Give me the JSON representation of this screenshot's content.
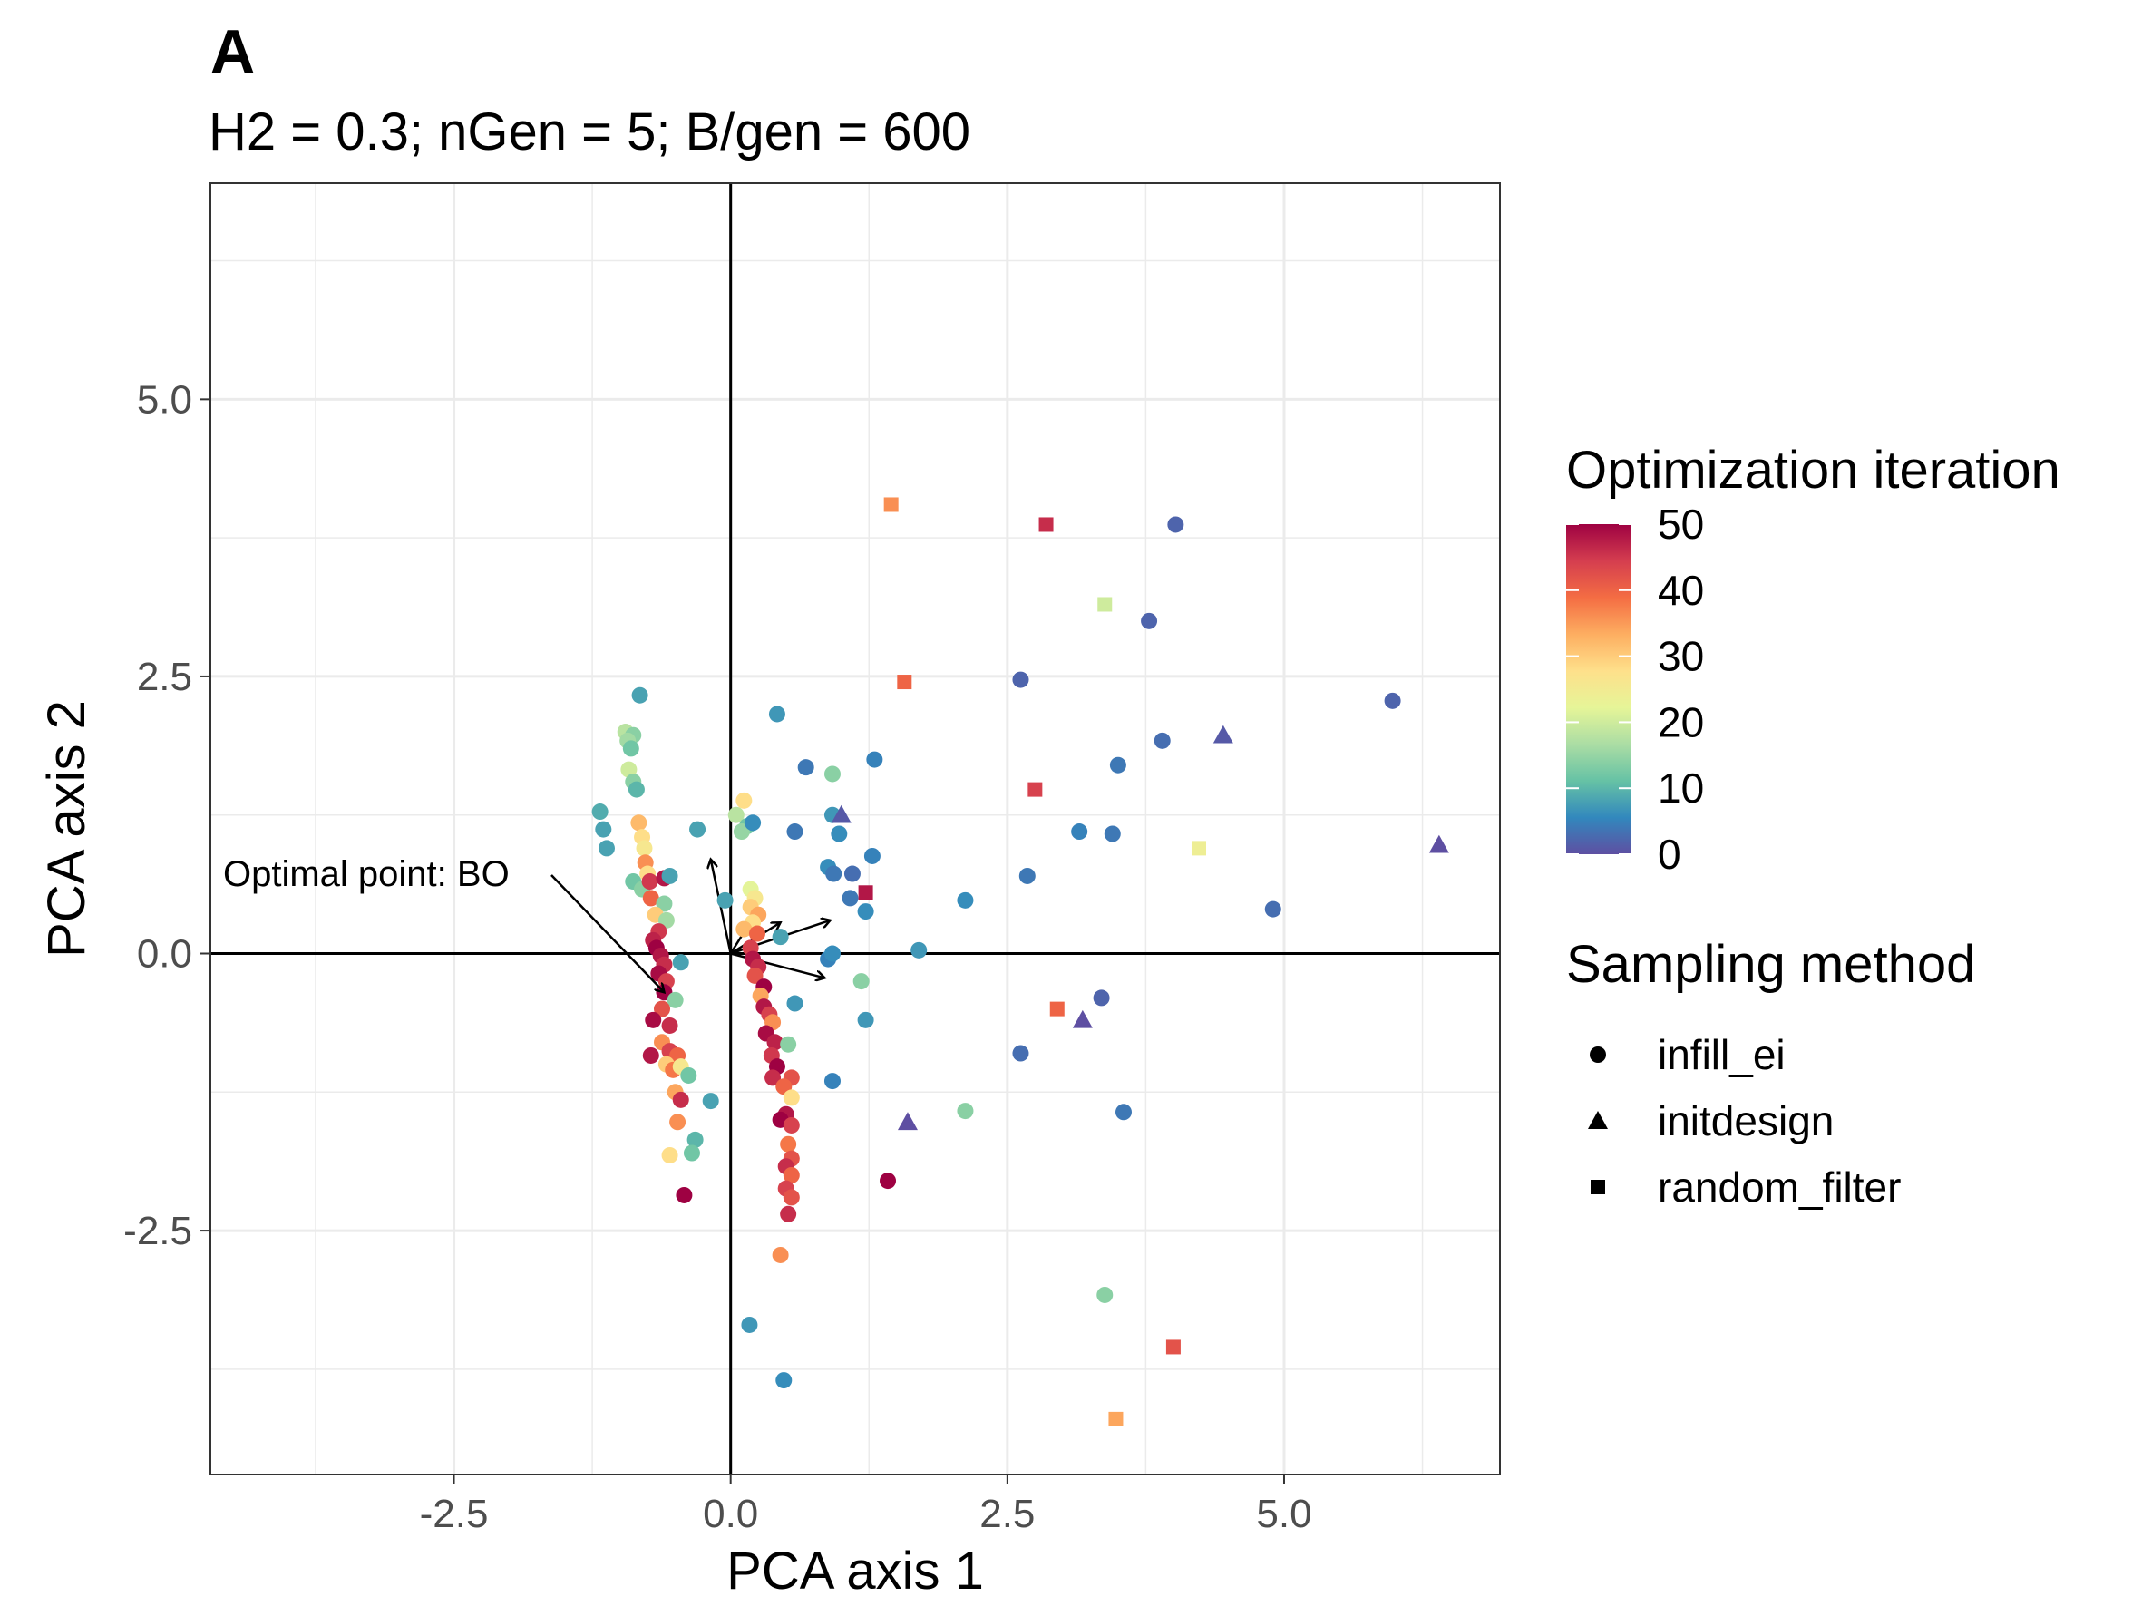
{
  "tag": "A",
  "subtitle": "H2 = 0.3; nGen = 5; B/gen = 600",
  "chart_data": {
    "type": "scatter",
    "xlabel": "PCA axis 1",
    "ylabel": "PCA axis 2",
    "xlim": [
      -4.7,
      6.95
    ],
    "ylim": [
      -4.7,
      6.95
    ],
    "xticks": [
      -2.5,
      0.0,
      2.5,
      5.0
    ],
    "yticks": [
      -2.5,
      0.0,
      2.5,
      5.0
    ],
    "xtick_labels": [
      "-2.5",
      "0.0",
      "2.5",
      "5.0"
    ],
    "ytick_labels": [
      "-2.5",
      "0.0",
      "2.5",
      "5.0"
    ],
    "grid": true,
    "reference_lines": {
      "x": 0,
      "y": 0
    },
    "color_scale": {
      "title": "Optimization iteration",
      "min": 0,
      "max": 50,
      "ticks": [
        50,
        40,
        30,
        20,
        10,
        0
      ],
      "tick_labels": [
        "50",
        "40",
        "30",
        "20",
        "10",
        "0"
      ],
      "palette": [
        "#5E4FA2",
        "#3288BD",
        "#66C2A5",
        "#ABDDA4",
        "#E6F598",
        "#FEE08B",
        "#FDAE61",
        "#F46D43",
        "#D53E4F",
        "#9E0142"
      ]
    },
    "shape_legend": {
      "title": "Sampling method",
      "items": [
        {
          "label": "infill_ei",
          "shape": "circle"
        },
        {
          "label": "initdesign",
          "shape": "triangle"
        },
        {
          "label": "random_filter",
          "shape": "square"
        }
      ]
    },
    "annotation": {
      "text": "Optimal point: BO",
      "x": -0.6,
      "y": -0.35
    },
    "arrows": [
      {
        "x": 0.9,
        "y": 0.3
      },
      {
        "x": 0.85,
        "y": -0.22
      },
      {
        "x": -0.18,
        "y": 0.85
      },
      {
        "x": 0.25,
        "y": 0.4
      },
      {
        "x": 0.45,
        "y": 0.28
      }
    ],
    "points": [
      {
        "x": -0.82,
        "y": 2.33,
        "iter": 8,
        "method": "infill_ei"
      },
      {
        "x": -0.95,
        "y": 2.0,
        "iter": 18,
        "method": "infill_ei"
      },
      {
        "x": -0.88,
        "y": 1.97,
        "iter": 14,
        "method": "infill_ei"
      },
      {
        "x": -0.93,
        "y": 1.92,
        "iter": 16,
        "method": "infill_ei"
      },
      {
        "x": -0.9,
        "y": 1.85,
        "iter": 12,
        "method": "infill_ei"
      },
      {
        "x": -0.92,
        "y": 1.66,
        "iter": 20,
        "method": "infill_ei"
      },
      {
        "x": -0.88,
        "y": 1.55,
        "iter": 14,
        "method": "infill_ei"
      },
      {
        "x": -0.85,
        "y": 1.48,
        "iter": 10,
        "method": "infill_ei"
      },
      {
        "x": -1.18,
        "y": 1.28,
        "iter": 9,
        "method": "infill_ei"
      },
      {
        "x": -1.15,
        "y": 1.12,
        "iter": 8,
        "method": "infill_ei"
      },
      {
        "x": -0.83,
        "y": 1.18,
        "iter": 32,
        "method": "infill_ei"
      },
      {
        "x": -0.8,
        "y": 1.05,
        "iter": 28,
        "method": "infill_ei"
      },
      {
        "x": -0.78,
        "y": 0.95,
        "iter": 26,
        "method": "infill_ei"
      },
      {
        "x": -1.12,
        "y": 0.95,
        "iter": 8,
        "method": "infill_ei"
      },
      {
        "x": -0.77,
        "y": 0.82,
        "iter": 36,
        "method": "infill_ei"
      },
      {
        "x": -0.75,
        "y": 0.72,
        "iter": 28,
        "method": "infill_ei"
      },
      {
        "x": -0.88,
        "y": 0.65,
        "iter": 12,
        "method": "infill_ei"
      },
      {
        "x": -0.8,
        "y": 0.58,
        "iter": 14,
        "method": "infill_ei"
      },
      {
        "x": -0.73,
        "y": 0.65,
        "iter": 45,
        "method": "infill_ei"
      },
      {
        "x": -0.6,
        "y": 0.68,
        "iter": 48,
        "method": "infill_ei"
      },
      {
        "x": -0.55,
        "y": 0.7,
        "iter": 8,
        "method": "infill_ei"
      },
      {
        "x": -0.72,
        "y": 0.5,
        "iter": 40,
        "method": "infill_ei"
      },
      {
        "x": -0.6,
        "y": 0.45,
        "iter": 14,
        "method": "infill_ei"
      },
      {
        "x": -0.68,
        "y": 0.35,
        "iter": 30,
        "method": "infill_ei"
      },
      {
        "x": -0.58,
        "y": 0.3,
        "iter": 16,
        "method": "infill_ei"
      },
      {
        "x": -0.65,
        "y": 0.2,
        "iter": 45,
        "method": "infill_ei"
      },
      {
        "x": -0.7,
        "y": 0.12,
        "iter": 47,
        "method": "infill_ei"
      },
      {
        "x": -0.67,
        "y": 0.05,
        "iter": 50,
        "method": "infill_ei"
      },
      {
        "x": -0.63,
        "y": -0.02,
        "iter": 48,
        "method": "infill_ei"
      },
      {
        "x": -0.6,
        "y": -0.1,
        "iter": 46,
        "method": "infill_ei"
      },
      {
        "x": -0.65,
        "y": -0.18,
        "iter": 49,
        "method": "infill_ei"
      },
      {
        "x": -0.58,
        "y": -0.25,
        "iter": 44,
        "method": "infill_ei"
      },
      {
        "x": -0.6,
        "y": -0.35,
        "iter": 50,
        "method": "infill_ei"
      },
      {
        "x": -0.5,
        "y": -0.42,
        "iter": 14,
        "method": "infill_ei"
      },
      {
        "x": -0.45,
        "y": -0.08,
        "iter": 8,
        "method": "infill_ei"
      },
      {
        "x": -0.62,
        "y": -0.5,
        "iter": 42,
        "method": "infill_ei"
      },
      {
        "x": -0.7,
        "y": -0.6,
        "iter": 49,
        "method": "infill_ei"
      },
      {
        "x": -0.55,
        "y": -0.65,
        "iter": 46,
        "method": "infill_ei"
      },
      {
        "x": -0.62,
        "y": -0.8,
        "iter": 36,
        "method": "infill_ei"
      },
      {
        "x": -0.55,
        "y": -0.88,
        "iter": 44,
        "method": "infill_ei"
      },
      {
        "x": -0.48,
        "y": -0.92,
        "iter": 40,
        "method": "infill_ei"
      },
      {
        "x": -0.72,
        "y": -0.92,
        "iter": 48,
        "method": "infill_ei"
      },
      {
        "x": -0.58,
        "y": -1.0,
        "iter": 30,
        "method": "infill_ei"
      },
      {
        "x": -0.52,
        "y": -1.05,
        "iter": 38,
        "method": "infill_ei"
      },
      {
        "x": -0.45,
        "y": -1.02,
        "iter": 26,
        "method": "infill_ei"
      },
      {
        "x": -0.38,
        "y": -1.1,
        "iter": 12,
        "method": "infill_ei"
      },
      {
        "x": -0.5,
        "y": -1.25,
        "iter": 34,
        "method": "infill_ei"
      },
      {
        "x": -0.45,
        "y": -1.32,
        "iter": 46,
        "method": "infill_ei"
      },
      {
        "x": -0.18,
        "y": -1.33,
        "iter": 8,
        "method": "infill_ei"
      },
      {
        "x": -0.48,
        "y": -1.52,
        "iter": 36,
        "method": "infill_ei"
      },
      {
        "x": -0.32,
        "y": -1.68,
        "iter": 10,
        "method": "infill_ei"
      },
      {
        "x": -0.35,
        "y": -1.8,
        "iter": 12,
        "method": "infill_ei"
      },
      {
        "x": -0.55,
        "y": -1.82,
        "iter": 28,
        "method": "infill_ei"
      },
      {
        "x": -0.42,
        "y": -2.18,
        "iter": 50,
        "method": "infill_ei"
      },
      {
        "x": -0.3,
        "y": 1.12,
        "iter": 8,
        "method": "infill_ei"
      },
      {
        "x": -0.05,
        "y": 0.48,
        "iter": 8,
        "method": "infill_ei"
      },
      {
        "x": 0.42,
        "y": 2.16,
        "iter": 7,
        "method": "infill_ei"
      },
      {
        "x": 0.12,
        "y": 1.38,
        "iter": 28,
        "method": "infill_ei"
      },
      {
        "x": 0.05,
        "y": 1.25,
        "iter": 18,
        "method": "infill_ei"
      },
      {
        "x": 0.15,
        "y": 1.15,
        "iter": 12,
        "method": "infill_ei"
      },
      {
        "x": 0.1,
        "y": 1.1,
        "iter": 15,
        "method": "infill_ei"
      },
      {
        "x": 0.2,
        "y": 1.18,
        "iter": 6,
        "method": "infill_ei"
      },
      {
        "x": 0.18,
        "y": 0.58,
        "iter": 22,
        "method": "infill_ei"
      },
      {
        "x": 0.22,
        "y": 0.5,
        "iter": 26,
        "method": "infill_ei"
      },
      {
        "x": 0.18,
        "y": 0.42,
        "iter": 30,
        "method": "infill_ei"
      },
      {
        "x": 0.25,
        "y": 0.35,
        "iter": 34,
        "method": "infill_ei"
      },
      {
        "x": 0.2,
        "y": 0.28,
        "iter": 28,
        "method": "infill_ei"
      },
      {
        "x": 0.12,
        "y": 0.22,
        "iter": 32,
        "method": "infill_ei"
      },
      {
        "x": 0.24,
        "y": 0.18,
        "iter": 40,
        "method": "infill_ei"
      },
      {
        "x": 0.45,
        "y": 0.15,
        "iter": 8,
        "method": "infill_ei"
      },
      {
        "x": 0.18,
        "y": 0.05,
        "iter": 44,
        "method": "infill_ei"
      },
      {
        "x": 0.2,
        "y": -0.05,
        "iter": 48,
        "method": "infill_ei"
      },
      {
        "x": 0.25,
        "y": -0.12,
        "iter": 46,
        "method": "infill_ei"
      },
      {
        "x": 0.22,
        "y": -0.2,
        "iter": 42,
        "method": "infill_ei"
      },
      {
        "x": 0.3,
        "y": -0.3,
        "iter": 50,
        "method": "infill_ei"
      },
      {
        "x": 0.27,
        "y": -0.38,
        "iter": 34,
        "method": "infill_ei"
      },
      {
        "x": 0.3,
        "y": -0.48,
        "iter": 48,
        "method": "infill_ei"
      },
      {
        "x": 0.35,
        "y": -0.55,
        "iter": 44,
        "method": "infill_ei"
      },
      {
        "x": 0.38,
        "y": -0.62,
        "iter": 36,
        "method": "infill_ei"
      },
      {
        "x": 0.32,
        "y": -0.72,
        "iter": 49,
        "method": "infill_ei"
      },
      {
        "x": 0.4,
        "y": -0.8,
        "iter": 47,
        "method": "infill_ei"
      },
      {
        "x": 0.52,
        "y": -0.82,
        "iter": 14,
        "method": "infill_ei"
      },
      {
        "x": 0.37,
        "y": -0.92,
        "iter": 45,
        "method": "infill_ei"
      },
      {
        "x": 0.42,
        "y": -1.02,
        "iter": 50,
        "method": "infill_ei"
      },
      {
        "x": 0.38,
        "y": -1.12,
        "iter": 46,
        "method": "infill_ei"
      },
      {
        "x": 0.55,
        "y": -1.12,
        "iter": 42,
        "method": "infill_ei"
      },
      {
        "x": 0.48,
        "y": -1.2,
        "iter": 40,
        "method": "infill_ei"
      },
      {
        "x": 0.55,
        "y": -1.3,
        "iter": 28,
        "method": "infill_ei"
      },
      {
        "x": 0.5,
        "y": -1.45,
        "iter": 48,
        "method": "infill_ei"
      },
      {
        "x": 0.45,
        "y": -1.5,
        "iter": 50,
        "method": "infill_ei"
      },
      {
        "x": 0.55,
        "y": -1.55,
        "iter": 44,
        "method": "infill_ei"
      },
      {
        "x": 0.52,
        "y": -1.72,
        "iter": 38,
        "method": "infill_ei"
      },
      {
        "x": 0.55,
        "y": -1.85,
        "iter": 42,
        "method": "infill_ei"
      },
      {
        "x": 0.5,
        "y": -1.92,
        "iter": 46,
        "method": "infill_ei"
      },
      {
        "x": 0.55,
        "y": -2.0,
        "iter": 40,
        "method": "infill_ei"
      },
      {
        "x": 0.5,
        "y": -2.12,
        "iter": 44,
        "method": "infill_ei"
      },
      {
        "x": 0.55,
        "y": -2.2,
        "iter": 42,
        "method": "infill_ei"
      },
      {
        "x": 0.52,
        "y": -2.35,
        "iter": 46,
        "method": "infill_ei"
      },
      {
        "x": 0.45,
        "y": -2.72,
        "iter": 36,
        "method": "infill_ei"
      },
      {
        "x": 0.17,
        "y": -3.35,
        "iter": 7,
        "method": "infill_ei"
      },
      {
        "x": 0.48,
        "y": -3.85,
        "iter": 6,
        "method": "infill_ei"
      },
      {
        "x": 0.68,
        "y": 1.68,
        "iter": 4,
        "method": "infill_ei"
      },
      {
        "x": 0.92,
        "y": 1.62,
        "iter": 14,
        "method": "infill_ei"
      },
      {
        "x": 0.58,
        "y": 1.1,
        "iter": 4,
        "method": "infill_ei"
      },
      {
        "x": 0.92,
        "y": 1.25,
        "iter": 7,
        "method": "infill_ei"
      },
      {
        "x": 0.98,
        "y": 1.08,
        "iter": 6,
        "method": "infill_ei"
      },
      {
        "x": 1.3,
        "y": 1.75,
        "iter": 5,
        "method": "infill_ei"
      },
      {
        "x": 0.88,
        "y": 0.78,
        "iter": 6,
        "method": "infill_ei"
      },
      {
        "x": 0.93,
        "y": 0.72,
        "iter": 4,
        "method": "infill_ei"
      },
      {
        "x": 1.1,
        "y": 0.72,
        "iter": 3,
        "method": "infill_ei"
      },
      {
        "x": 1.28,
        "y": 0.88,
        "iter": 5,
        "method": "infill_ei"
      },
      {
        "x": 1.08,
        "y": 0.5,
        "iter": 4,
        "method": "infill_ei"
      },
      {
        "x": 1.22,
        "y": 0.38,
        "iter": 6,
        "method": "infill_ei"
      },
      {
        "x": 0.88,
        "y": -0.05,
        "iter": 5,
        "method": "infill_ei"
      },
      {
        "x": 0.92,
        "y": 0.0,
        "iter": 6,
        "method": "infill_ei"
      },
      {
        "x": 0.58,
        "y": -0.45,
        "iter": 7,
        "method": "infill_ei"
      },
      {
        "x": 1.18,
        "y": -0.25,
        "iter": 14,
        "method": "infill_ei"
      },
      {
        "x": 1.22,
        "y": -0.6,
        "iter": 7,
        "method": "infill_ei"
      },
      {
        "x": 0.92,
        "y": -1.15,
        "iter": 5,
        "method": "infill_ei"
      },
      {
        "x": 1.7,
        "y": 0.03,
        "iter": 7,
        "method": "infill_ei"
      },
      {
        "x": 2.12,
        "y": 0.48,
        "iter": 6,
        "method": "infill_ei"
      },
      {
        "x": 1.42,
        "y": -2.05,
        "iter": 50,
        "method": "infill_ei"
      },
      {
        "x": 2.12,
        "y": -1.42,
        "iter": 14,
        "method": "infill_ei"
      },
      {
        "x": 2.62,
        "y": 2.47,
        "iter": 2,
        "method": "infill_ei"
      },
      {
        "x": 2.68,
        "y": 0.7,
        "iter": 4,
        "method": "infill_ei"
      },
      {
        "x": 2.62,
        "y": -0.9,
        "iter": 3,
        "method": "infill_ei"
      },
      {
        "x": 3.15,
        "y": 1.1,
        "iter": 5,
        "method": "infill_ei"
      },
      {
        "x": 3.45,
        "y": 1.08,
        "iter": 4,
        "method": "infill_ei"
      },
      {
        "x": 3.5,
        "y": 1.7,
        "iter": 4,
        "method": "infill_ei"
      },
      {
        "x": 3.78,
        "y": 3.0,
        "iter": 2,
        "method": "infill_ei"
      },
      {
        "x": 3.9,
        "y": 1.92,
        "iter": 3,
        "method": "infill_ei"
      },
      {
        "x": 4.02,
        "y": 3.87,
        "iter": 2,
        "method": "infill_ei"
      },
      {
        "x": 3.35,
        "y": -0.4,
        "iter": 2,
        "method": "infill_ei"
      },
      {
        "x": 3.55,
        "y": -1.43,
        "iter": 4,
        "method": "infill_ei"
      },
      {
        "x": 3.38,
        "y": -3.08,
        "iter": 14,
        "method": "infill_ei"
      },
      {
        "x": 4.9,
        "y": 0.4,
        "iter": 3,
        "method": "infill_ei"
      },
      {
        "x": 5.98,
        "y": 2.28,
        "iter": 2,
        "method": "infill_ei"
      },
      {
        "x": 1.0,
        "y": 1.25,
        "iter": 1,
        "method": "initdesign"
      },
      {
        "x": 1.6,
        "y": -1.52,
        "iter": 0,
        "method": "initdesign"
      },
      {
        "x": 3.18,
        "y": -0.6,
        "iter": 0,
        "method": "initdesign"
      },
      {
        "x": 4.45,
        "y": 1.97,
        "iter": 1,
        "method": "initdesign"
      },
      {
        "x": 6.4,
        "y": 0.98,
        "iter": 0,
        "method": "initdesign"
      },
      {
        "x": 1.45,
        "y": 4.05,
        "iter": 36,
        "method": "random_filter"
      },
      {
        "x": 2.85,
        "y": 3.87,
        "iter": 46,
        "method": "random_filter"
      },
      {
        "x": 3.38,
        "y": 3.15,
        "iter": 20,
        "method": "random_filter"
      },
      {
        "x": 1.57,
        "y": 2.45,
        "iter": 40,
        "method": "random_filter"
      },
      {
        "x": 2.75,
        "y": 1.48,
        "iter": 44,
        "method": "random_filter"
      },
      {
        "x": 1.22,
        "y": 0.55,
        "iter": 48,
        "method": "random_filter"
      },
      {
        "x": 4.23,
        "y": 0.95,
        "iter": 24,
        "method": "random_filter"
      },
      {
        "x": 2.95,
        "y": -0.5,
        "iter": 40,
        "method": "random_filter"
      },
      {
        "x": 4.0,
        "y": -3.55,
        "iter": 42,
        "method": "random_filter"
      },
      {
        "x": 3.48,
        "y": -4.2,
        "iter": 34,
        "method": "random_filter"
      }
    ]
  }
}
